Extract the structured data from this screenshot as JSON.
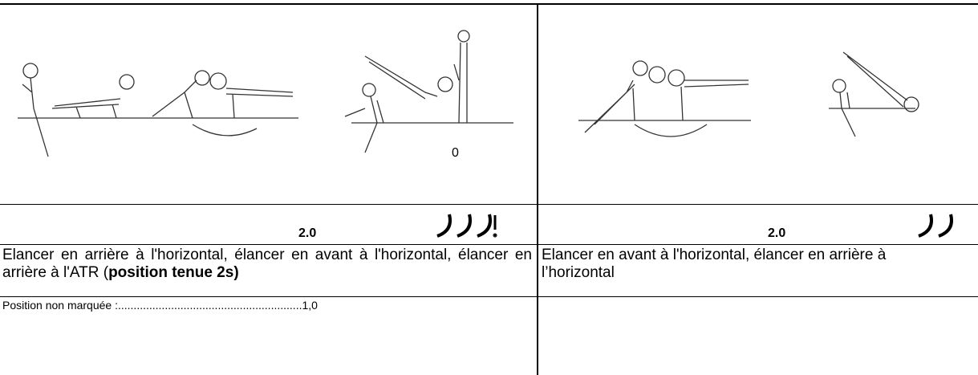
{
  "cells": [
    {
      "caption": "0",
      "score": "2.0",
      "description": [
        "Elancer en arrière à l'horizontal, élancer en avant à l'horizontal, élancer en arrière à l'ATR (",
        "position tenue 2s)"
      ],
      "deduction": "Position non  marquée :...........................................................1,0"
    },
    {
      "score": "2.0",
      "description": "Elancer en avant à l'horizontal, élancer en arrière à l’horizontal"
    }
  ]
}
